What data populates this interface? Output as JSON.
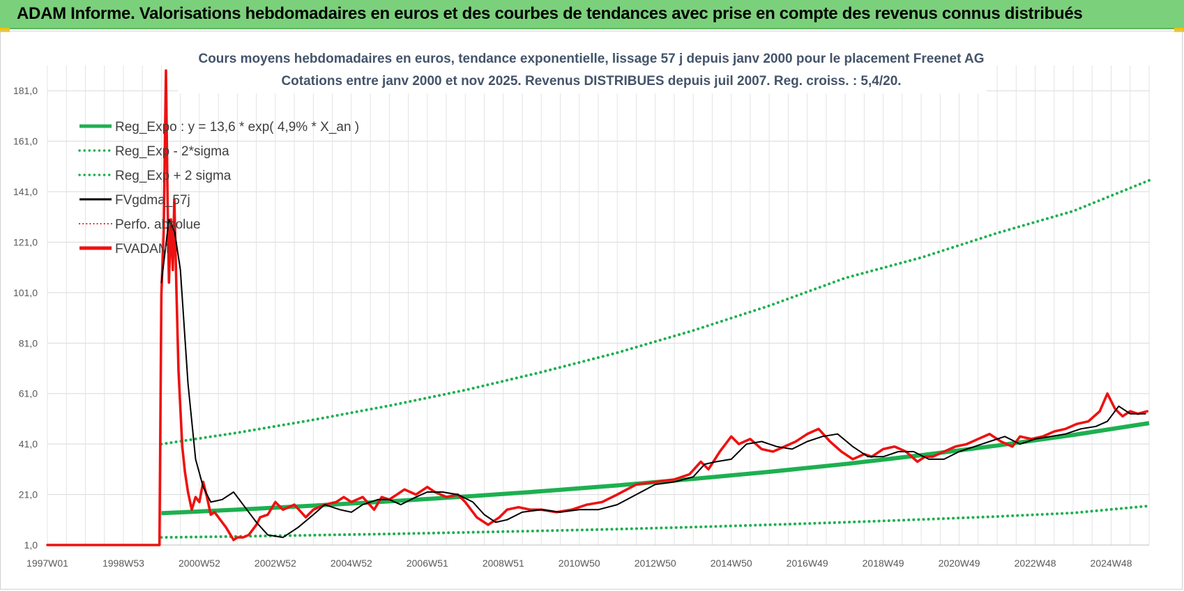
{
  "header": {
    "title": "ADAM Informe. Valorisations hebdomadaires en euros et des courbes de tendances avec prise en compte des revenus connus distribués"
  },
  "colors": {
    "header_bg": "#7bd07b",
    "reg_exp": "#1db050",
    "fv_gdma": "#000000",
    "perfo": "#e00000",
    "fvadam": "#ee1111"
  },
  "chart_data": {
    "type": "line",
    "title": "Cours moyens hebdomadaires en euros, tendance exponentielle, lissage 57 j depuis janv 2000 pour le placement Freenet AG",
    "subtitle": "Cotations entre janv 2000 et nov 2025. Revenus DISTRIBUES depuis juil 2007. Reg. croiss. : 5,4/20.",
    "xlabel": "",
    "ylabel": "",
    "x_range": [
      1997.0,
      2026.0
    ],
    "ylim": [
      1.0,
      191.0
    ],
    "y_ticks": [
      1.0,
      21.0,
      41.0,
      61.0,
      81.0,
      101.0,
      121.0,
      141.0,
      161.0,
      181.0
    ],
    "y_tick_labels": [
      "1,0",
      "21,0",
      "41,0",
      "61,0",
      "81,0",
      "101,0",
      "121,0",
      "141,0",
      "161,0",
      "181,0"
    ],
    "x_tick_labels": [
      {
        "x": 1997.0,
        "label": "1997W01"
      },
      {
        "x": 1999.0,
        "label": "1998W53"
      },
      {
        "x": 2001.0,
        "label": "2000W52"
      },
      {
        "x": 2003.0,
        "label": "2002W52"
      },
      {
        "x": 2005.0,
        "label": "2004W52"
      },
      {
        "x": 2007.0,
        "label": "2006W51"
      },
      {
        "x": 2009.0,
        "label": "2008W51"
      },
      {
        "x": 2011.0,
        "label": "2010W50"
      },
      {
        "x": 2013.0,
        "label": "2012W50"
      },
      {
        "x": 2015.0,
        "label": "2014W50"
      },
      {
        "x": 2017.0,
        "label": "2016W49"
      },
      {
        "x": 2019.0,
        "label": "2018W49"
      },
      {
        "x": 2021.0,
        "label": "2020W49"
      },
      {
        "x": 2023.0,
        "label": "2022W48"
      },
      {
        "x": 2025.0,
        "label": "2024W48"
      }
    ],
    "grid": true,
    "legend_position": "top-left",
    "legend": [
      {
        "name": "Reg_Expo : y = 13,6 * exp( 4,9% *  X_an )",
        "style": "solid-thick",
        "color": "#1db050"
      },
      {
        "name": "Reg_Exp - 2*sigma",
        "style": "dotted",
        "color": "#1db050"
      },
      {
        "name": "Reg_Exp + 2 sigma",
        "style": "dotted",
        "color": "#1db050"
      },
      {
        "name": "FVgdma_57j",
        "style": "solid",
        "color": "#000000"
      },
      {
        "name": "Perfo. absolue",
        "style": "dotted",
        "color": "#e00000"
      },
      {
        "name": "FVADAM",
        "style": "solid-thick",
        "color": "#ee1111"
      }
    ],
    "series": [
      {
        "name": "Reg_Expo : y = 13,6 * exp( 4,9% *  X_an )",
        "x": [
          2000.0,
          2002.0,
          2004.0,
          2006.0,
          2008.0,
          2010.0,
          2012.0,
          2014.0,
          2016.0,
          2018.0,
          2020.0,
          2022.0,
          2024.0,
          2026.0
        ],
        "y": [
          13.6,
          15.0,
          16.6,
          18.3,
          20.2,
          22.3,
          24.6,
          27.2,
          30.0,
          33.1,
          36.6,
          40.4,
          44.6,
          49.3
        ]
      },
      {
        "name": "Reg_Exp - 2*sigma",
        "x": [
          2000.0,
          2002.0,
          2004.0,
          2006.0,
          2008.0,
          2010.0,
          2012.0,
          2014.0,
          2016.0,
          2018.0,
          2020.0,
          2022.0,
          2024.0,
          2026.0
        ],
        "y": [
          4.0,
          4.4,
          4.9,
          5.4,
          6.0,
          6.6,
          7.3,
          8.1,
          9.0,
          10.0,
          11.1,
          12.3,
          13.7,
          16.5
        ]
      },
      {
        "name": "Reg_Exp + 2 sigma",
        "x": [
          2000.0,
          2002.0,
          2004.0,
          2006.0,
          2008.0,
          2010.0,
          2012.0,
          2014.0,
          2016.0,
          2018.0,
          2020.0,
          2022.0,
          2024.0,
          2026.0
        ],
        "y": [
          41.0,
          45.5,
          50.6,
          56.2,
          62.4,
          69.5,
          77.2,
          86.0,
          95.8,
          106.8,
          114.9,
          124.6,
          133.3,
          145.5
        ]
      },
      {
        "name": "FVgdma_57j",
        "x": [
          2000.0,
          2000.2,
          2000.35,
          2000.5,
          2000.7,
          2000.9,
          2001.1,
          2001.3,
          2001.6,
          2001.9,
          2002.2,
          2002.5,
          2002.8,
          2003.2,
          2003.6,
          2004.0,
          2004.3,
          2004.7,
          2005.0,
          2005.3,
          2005.7,
          2006.0,
          2006.3,
          2006.7,
          2007.0,
          2007.4,
          2007.8,
          2008.2,
          2008.5,
          2008.8,
          2009.1,
          2009.5,
          2010.0,
          2010.5,
          2011.0,
          2011.5,
          2012.0,
          2012.5,
          2013.0,
          2013.5,
          2014.0,
          2014.3,
          2014.6,
          2015.0,
          2015.4,
          2015.8,
          2016.2,
          2016.6,
          2017.0,
          2017.4,
          2017.8,
          2018.2,
          2018.6,
          2019.0,
          2019.4,
          2019.8,
          2020.2,
          2020.6,
          2021.0,
          2021.4,
          2021.8,
          2022.2,
          2022.6,
          2023.0,
          2023.4,
          2023.8,
          2024.2,
          2024.6,
          2024.9,
          2025.2,
          2025.5,
          2025.9
        ],
        "y": [
          105,
          130,
          125,
          110,
          65,
          35,
          24,
          18,
          19,
          22,
          16,
          10,
          5,
          4,
          8,
          13,
          17,
          15,
          14,
          17,
          19,
          19,
          17,
          20,
          22,
          22,
          21,
          18,
          13,
          10,
          11,
          14,
          15,
          14,
          15,
          15,
          17,
          21,
          25,
          26,
          28,
          33,
          34,
          35,
          41,
          42,
          40,
          39,
          42,
          44,
          45,
          40,
          36,
          36,
          38,
          38,
          35,
          35,
          38,
          40,
          42,
          44,
          41,
          43,
          44,
          45,
          47,
          48,
          50,
          56,
          53,
          53
        ]
      },
      {
        "name": "Perfo. absolue",
        "x": [
          1997.0,
          1999.95
        ],
        "y": [
          1.0,
          1.0
        ]
      },
      {
        "name": "FVADAM",
        "x": [
          1997.0,
          1999.95,
          2000.0,
          2000.06,
          2000.12,
          2000.16,
          2000.2,
          2000.25,
          2000.3,
          2000.34,
          2000.4,
          2000.45,
          2000.5,
          2000.55,
          2000.62,
          2000.7,
          2000.8,
          2000.9,
          2001.0,
          2001.1,
          2001.2,
          2001.3,
          2001.4,
          2001.5,
          2001.7,
          2001.9,
          2002.0,
          2002.15,
          2002.3,
          2002.5,
          2002.6,
          2002.8,
          2003.0,
          2003.2,
          2003.5,
          2003.8,
          2004.0,
          2004.3,
          2004.6,
          2004.8,
          2005.0,
          2005.3,
          2005.6,
          2005.8,
          2006.0,
          2006.2,
          2006.4,
          2006.7,
          2007.0,
          2007.2,
          2007.5,
          2007.8,
          2008.0,
          2008.3,
          2008.6,
          2008.9,
          2009.1,
          2009.4,
          2009.7,
          2010.0,
          2010.4,
          2010.8,
          2011.2,
          2011.6,
          2012.0,
          2012.5,
          2013.0,
          2013.5,
          2013.9,
          2014.2,
          2014.4,
          2014.7,
          2015.0,
          2015.2,
          2015.5,
          2015.8,
          2016.1,
          2016.4,
          2016.7,
          2017.0,
          2017.3,
          2017.6,
          2017.9,
          2018.2,
          2018.5,
          2018.7,
          2019.0,
          2019.3,
          2019.6,
          2019.9,
          2020.1,
          2020.3,
          2020.6,
          2020.9,
          2021.2,
          2021.5,
          2021.8,
          2022.1,
          2022.4,
          2022.6,
          2022.9,
          2023.2,
          2023.5,
          2023.8,
          2024.1,
          2024.4,
          2024.7,
          2024.9,
          2025.1,
          2025.3,
          2025.5,
          2025.7,
          2025.95
        ],
        "y": [
          1.0,
          1.0,
          100,
          125,
          189,
          140,
          105,
          130,
          110,
          138,
          100,
          70,
          55,
          40,
          30,
          22,
          15,
          20,
          18,
          26,
          20,
          13,
          14,
          12,
          8,
          3,
          4,
          4,
          5,
          9,
          12,
          13,
          18,
          15,
          17,
          12,
          15,
          17,
          18,
          20,
          18,
          20,
          15,
          20,
          19,
          21,
          23,
          21,
          24,
          22,
          20,
          21,
          18,
          12,
          9,
          12,
          15,
          16,
          15,
          15,
          14,
          15,
          17,
          18,
          21,
          25,
          26,
          27,
          29,
          34,
          31,
          38,
          44,
          41,
          43,
          39,
          38,
          40,
          42,
          45,
          47,
          42,
          38,
          35,
          37,
          36,
          39,
          40,
          38,
          34,
          36,
          36,
          38,
          40,
          41,
          43,
          45,
          42,
          40,
          44,
          43,
          44,
          46,
          47,
          49,
          50,
          54,
          61,
          55,
          52,
          54,
          53,
          54
        ]
      }
    ]
  }
}
